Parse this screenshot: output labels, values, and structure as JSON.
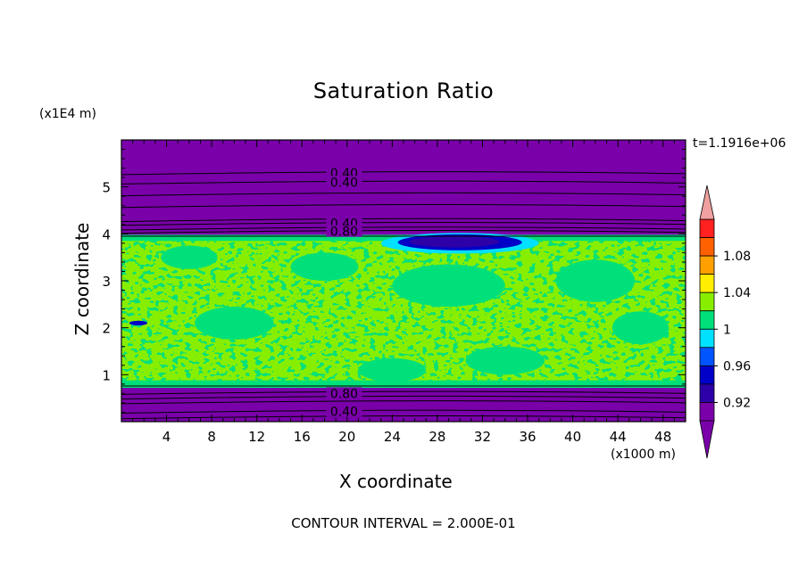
{
  "chart_data": {
    "type": "heatmap",
    "title": "Saturation Ratio",
    "xlabel": "X coordinate",
    "ylabel": "Z coordinate",
    "x_unit": "(x1000 m)",
    "y_unit": "(x1E4 m)",
    "time_label": "t=1.1916e+06",
    "footer": "CONTOUR INTERVAL = 2.000E-01",
    "xlim": [
      0,
      50
    ],
    "ylim": [
      0,
      6
    ],
    "x_ticks": [
      "4",
      "8",
      "12",
      "16",
      "20",
      "24",
      "28",
      "32",
      "36",
      "40",
      "44",
      "48"
    ],
    "y_ticks": [
      "1",
      "2",
      "3",
      "4",
      "5"
    ],
    "contour_labels": [
      {
        "text": "0.40",
        "x": 18,
        "z": 5.3
      },
      {
        "text": "0.40",
        "x": 18,
        "z": 5.1
      },
      {
        "text": "0.40",
        "x": 18,
        "z": 4.22
      },
      {
        "text": "0.80",
        "x": 18,
        "z": 4.05
      },
      {
        "text": "0.80",
        "x": 18,
        "z": 0.6
      },
      {
        "text": "0.40",
        "x": 18,
        "z": 0.22
      }
    ],
    "colorbar": {
      "levels": [
        0.9,
        0.92,
        0.94,
        0.96,
        0.98,
        1.0,
        1.02,
        1.04,
        1.06,
        1.08,
        1.1
      ],
      "tick_labels": [
        "0.92",
        "0.96",
        "1",
        "1.04",
        "1.08"
      ],
      "colors": [
        "#7a00aa",
        "#2d00a8",
        "#0000c8",
        "#0055ff",
        "#00e0ff",
        "#00e07a",
        "#88ee00",
        "#ffee00",
        "#ffa000",
        "#ff6000",
        "#ff2020"
      ],
      "over_color": "#f0a0a0",
      "under_color": "#7a00aa"
    },
    "regions": [
      {
        "range": "z < 0.75",
        "level": "below 0.9",
        "color": "#7a00aa"
      },
      {
        "range": "0.75 <= z <= 3.95",
        "level": "0.98 - 1.02 (mixed)",
        "color": "#88ee00"
      },
      {
        "range": "z > 3.95",
        "level": "below 0.9",
        "color": "#7a00aa"
      },
      {
        "range": "x 26-34, z 3.7-4.0",
        "level": "0.92 - 0.96",
        "color": "#2d00a8"
      }
    ],
    "grid": false
  }
}
